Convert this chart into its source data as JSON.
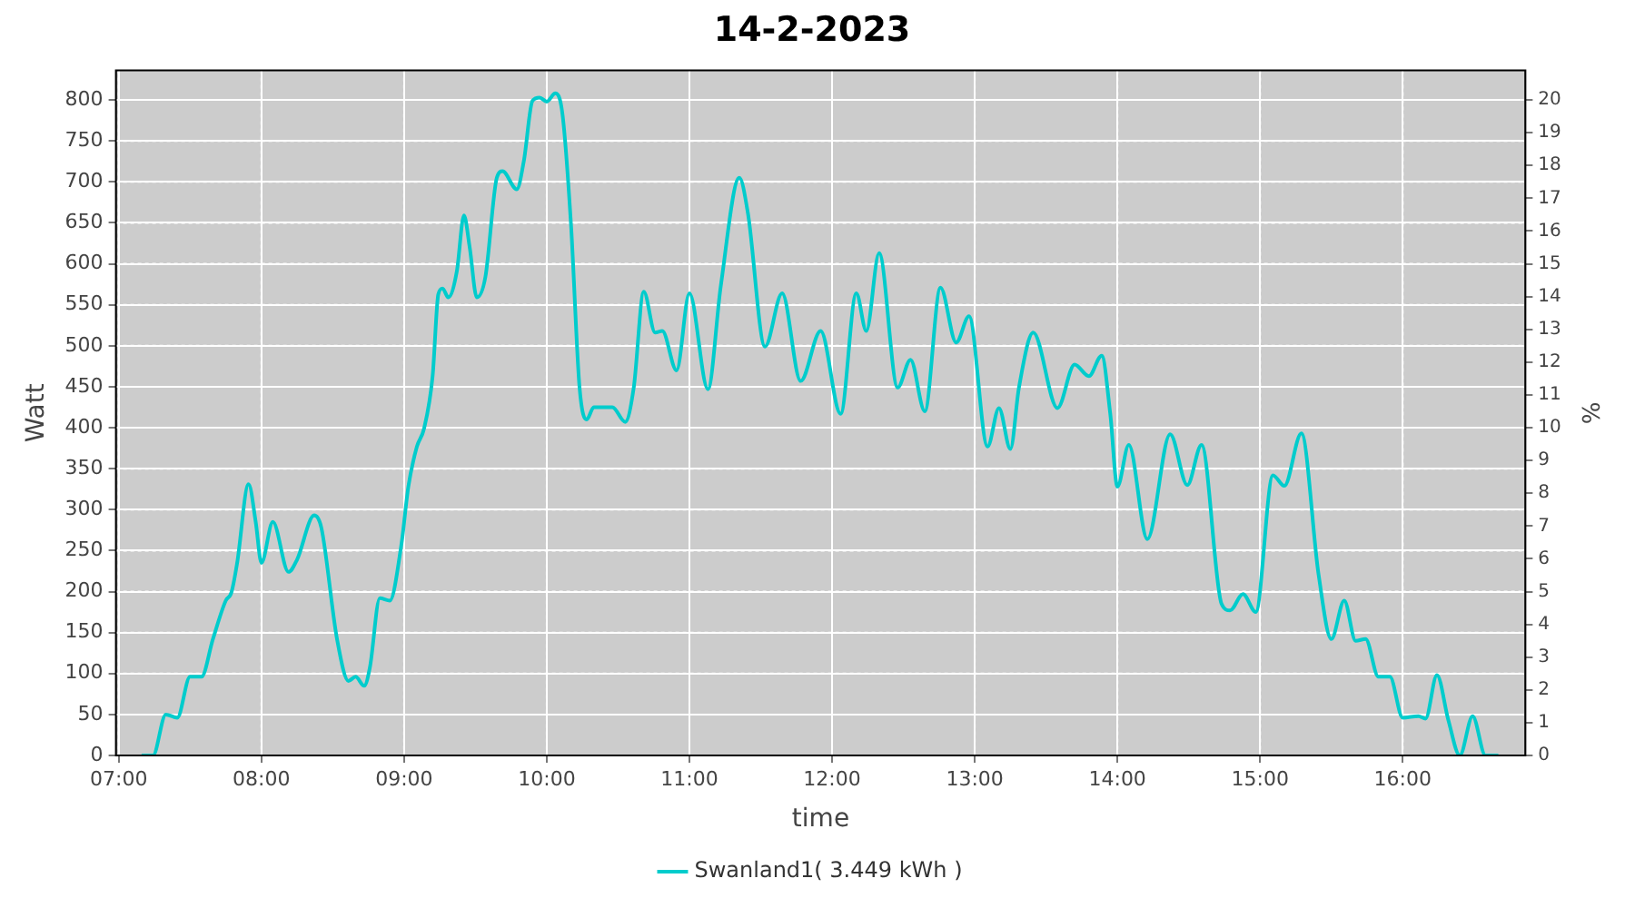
{
  "chart_data": {
    "type": "line",
    "title": "14-2-2023",
    "xlabel": "time",
    "ylabel": "Watt",
    "y2label": "%",
    "xlim": [
      6.98,
      16.86
    ],
    "xticks": [
      {
        "value": 7,
        "label": "07:00"
      },
      {
        "value": 8,
        "label": "08:00"
      },
      {
        "value": 9,
        "label": "09:00"
      },
      {
        "value": 10,
        "label": "10:00"
      },
      {
        "value": 11,
        "label": "11:00"
      },
      {
        "value": 12,
        "label": "12:00"
      },
      {
        "value": 13,
        "label": "13:00"
      },
      {
        "value": 14,
        "label": "14:00"
      },
      {
        "value": 15,
        "label": "15:00"
      },
      {
        "value": 16,
        "label": "16:00"
      }
    ],
    "ylim": [
      0,
      836
    ],
    "yticks": [
      0,
      50,
      100,
      150,
      200,
      250,
      300,
      350,
      400,
      450,
      500,
      550,
      600,
      650,
      700,
      750,
      800
    ],
    "y2lim": [
      0,
      20.9
    ],
    "y2ticks": [
      0,
      1,
      2,
      3,
      4,
      5,
      6,
      7,
      8,
      9,
      10,
      11,
      12,
      13,
      14,
      15,
      16,
      17,
      18,
      19,
      20
    ],
    "grid": true,
    "legend": "bottom",
    "marker": "none",
    "line_style": "solid",
    "series": [
      {
        "name": "Swanland1( 3.449 kWh )",
        "color": "#00cccc",
        "x": [
          7.16,
          7.24,
          7.33,
          7.41,
          7.5,
          7.58,
          7.66,
          7.75,
          7.79,
          7.83,
          7.91,
          7.96,
          8.0,
          8.08,
          8.19,
          8.25,
          8.37,
          8.42,
          8.53,
          8.61,
          8.66,
          8.72,
          8.76,
          8.83,
          8.9,
          8.98,
          9.03,
          9.09,
          9.14,
          9.2,
          9.24,
          9.27,
          9.31,
          9.37,
          9.42,
          9.46,
          9.51,
          9.57,
          9.65,
          9.69,
          9.79,
          9.84,
          9.9,
          9.95,
          10.0,
          10.06,
          10.11,
          10.17,
          10.23,
          10.28,
          10.33,
          10.46,
          10.55,
          10.61,
          10.68,
          10.76,
          10.81,
          10.91,
          11.0,
          11.13,
          11.22,
          11.35,
          11.41,
          11.53,
          11.65,
          11.78,
          11.92,
          12.06,
          12.17,
          12.24,
          12.33,
          12.46,
          12.55,
          12.65,
          12.76,
          12.87,
          12.96,
          13.09,
          13.17,
          13.25,
          13.31,
          13.41,
          13.58,
          13.7,
          13.8,
          13.89,
          13.95,
          14.0,
          14.08,
          14.21,
          14.37,
          14.49,
          14.59,
          14.73,
          14.79,
          14.88,
          14.97,
          15.09,
          15.17,
          15.29,
          15.41,
          15.5,
          15.59,
          15.67,
          15.74,
          15.83,
          15.91,
          16.0,
          16.11,
          16.16,
          16.24,
          16.32,
          16.4,
          16.49,
          16.58,
          16.67
        ],
        "values": [
          0,
          0,
          50,
          46,
          96,
          96,
          142,
          189,
          199,
          235,
          331,
          285,
          235,
          285,
          224,
          239,
          293,
          278,
          142,
          91,
          96,
          85,
          107,
          192,
          189,
          256,
          328,
          377,
          399,
          463,
          563,
          570,
          559,
          591,
          659,
          620,
          559,
          584,
          705,
          713,
          691,
          726,
          799,
          803,
          798,
          808,
          783,
          648,
          449,
          410,
          425,
          425,
          407,
          449,
          566,
          516,
          518,
          470,
          564,
          447,
          573,
          705,
          662,
          499,
          564,
          457,
          518,
          417,
          564,
          518,
          613,
          449,
          483,
          420,
          571,
          504,
          536,
          377,
          424,
          374,
          449,
          516,
          424,
          477,
          463,
          488,
          417,
          328,
          379,
          264,
          392,
          330,
          379,
          185,
          177,
          197,
          175,
          342,
          329,
          393,
          221,
          142,
          189,
          140,
          142,
          96,
          96,
          46,
          48,
          45,
          98,
          43,
          0,
          48,
          0,
          0
        ]
      }
    ]
  }
}
